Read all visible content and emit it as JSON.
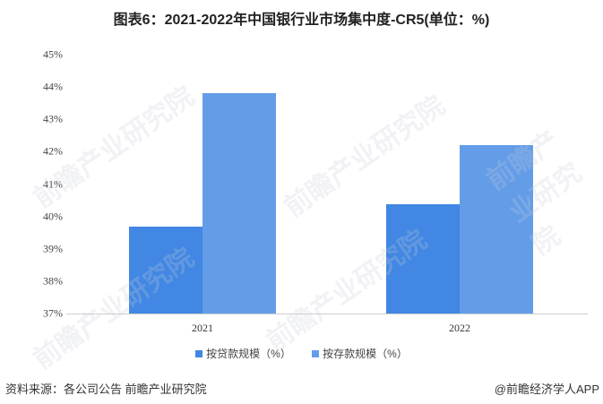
{
  "title": "图表6：2021-2022年中国银行业市场集中度-CR5(单位：%)",
  "colors": {
    "loan": "#4187e3",
    "deposit": "#639de8"
  },
  "chart_data": {
    "type": "bar",
    "title": "图表6：2021-2022年中国银行业市场集中度-CR5(单位：%)",
    "categories": [
      "2021",
      "2022"
    ],
    "series": [
      {
        "name": "按贷款规模（%）",
        "values": [
          39.69,
          40.38
        ]
      },
      {
        "name": "按存款规模（%）",
        "values": [
          43.81,
          42.21
        ]
      }
    ],
    "xlabel": "",
    "ylabel": "",
    "ylim": [
      37,
      45
    ],
    "yticks": [
      "37%",
      "38%",
      "39%",
      "40%",
      "41%",
      "42%",
      "43%",
      "44%",
      "45%"
    ],
    "grid": false,
    "legend_position": "bottom"
  },
  "legend": [
    "按贷款规模（%）",
    "按存款规模（%）"
  ],
  "footer": {
    "source": "资料来源：各公司公告 前瞻产业研究院",
    "credit": "@前瞻经济学人APP"
  },
  "watermark": "前瞻产业研究院"
}
